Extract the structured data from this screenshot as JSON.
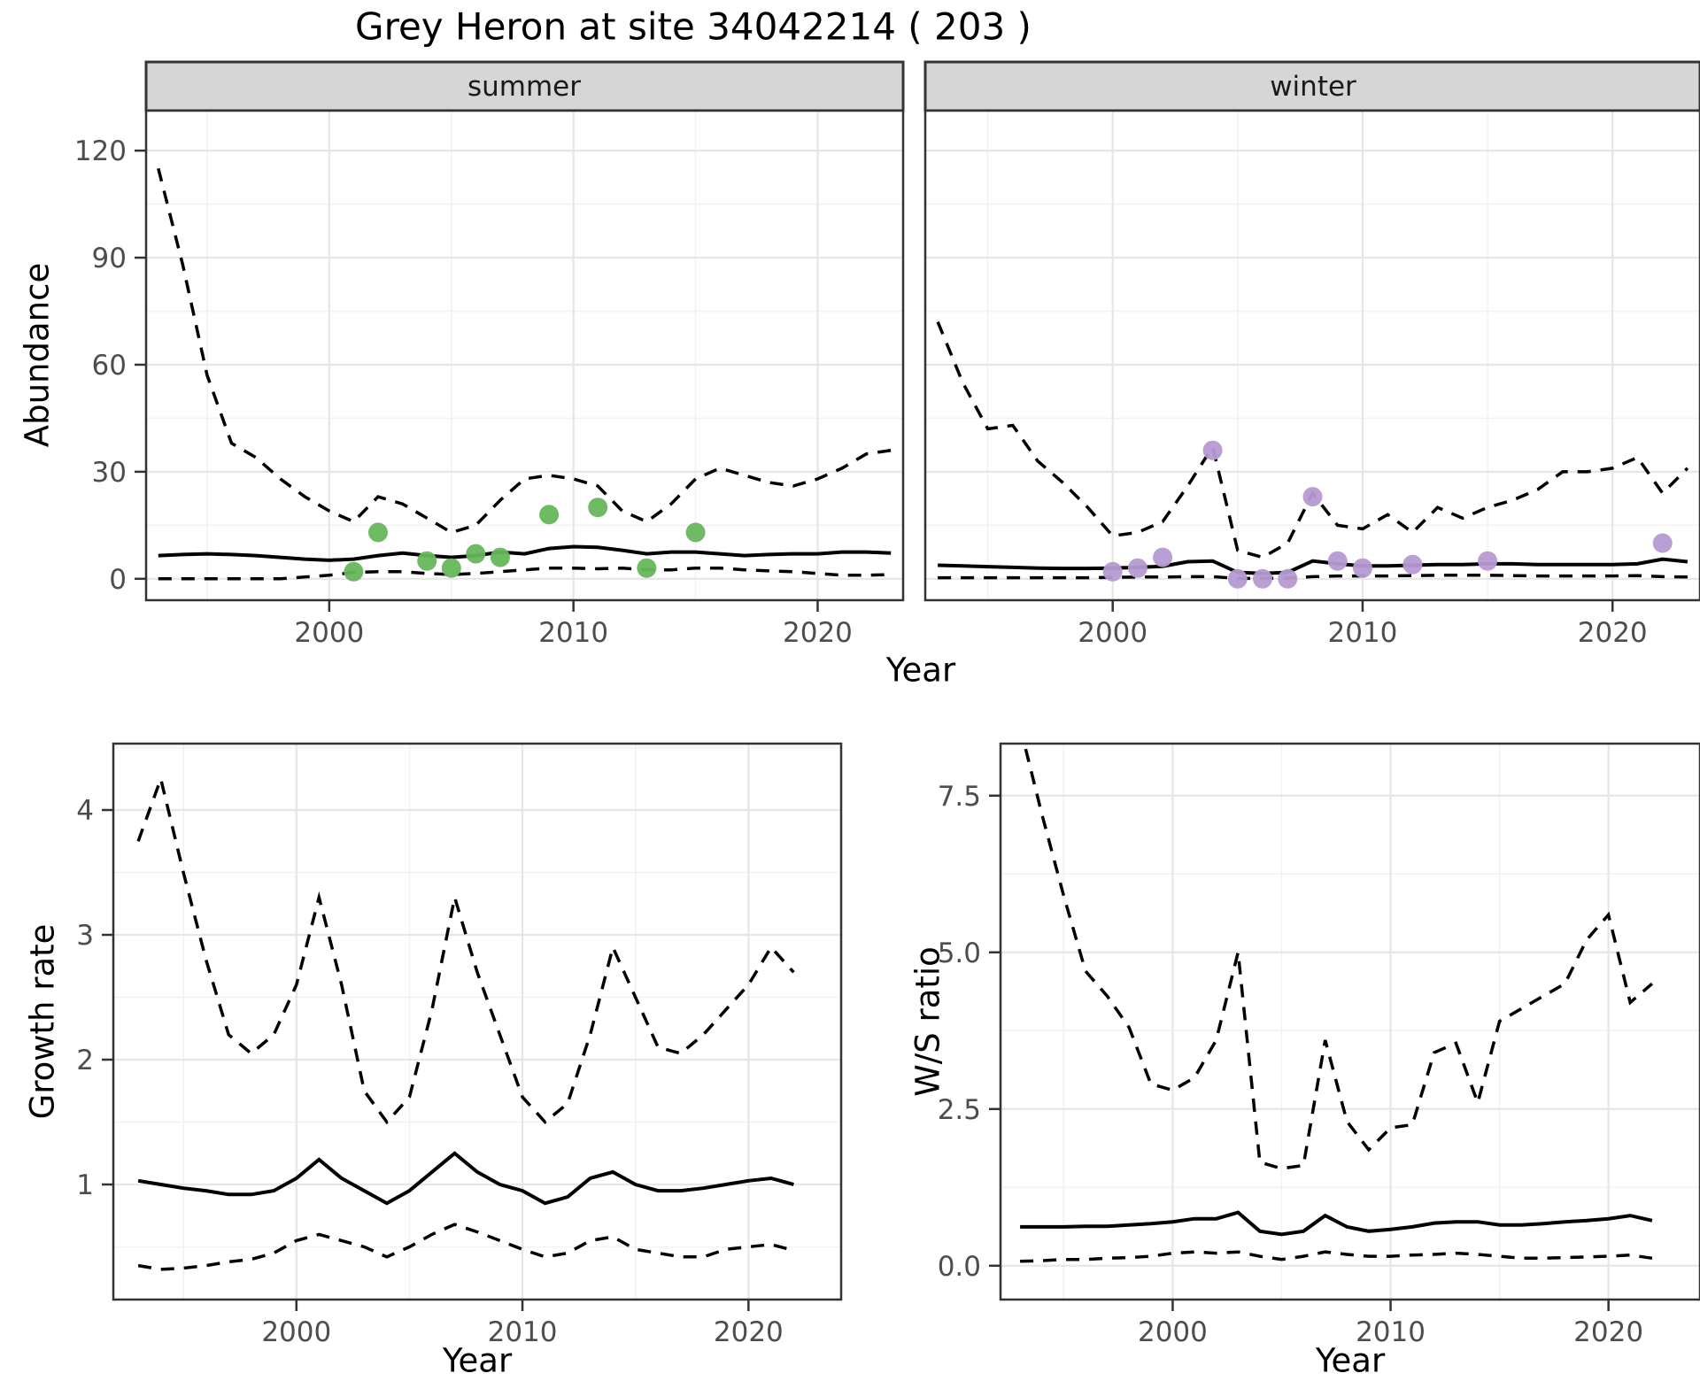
{
  "title": "Grey Heron at site 34042214 ( 203 )",
  "colors": {
    "summer_points": "#66b75c",
    "winter_points": "#b59ad1",
    "ci_line": "#000000",
    "median_line": "#000000",
    "strip_bg": "#d6d6d6",
    "panel_border": "#333333",
    "grid_major": "#e6e6e6",
    "grid_minor": "#f2f2f2",
    "tick_text": "#4d4d4d"
  },
  "chart_data": [
    {
      "id": "abundance_summer",
      "type": "line",
      "facet": "summer",
      "xlabel": "Year",
      "ylabel": "Abundance",
      "xlim": [
        1992.5,
        2023.5
      ],
      "ylim": [
        0,
        120
      ],
      "xticks": [
        2000,
        2010,
        2020
      ],
      "xtick_labels": [
        "2000",
        "2010",
        "2020"
      ],
      "yticks": [
        0,
        30,
        60,
        90,
        120
      ],
      "ytick_labels": [
        "0",
        "30",
        "60",
        "90",
        "120"
      ],
      "grid": true,
      "x": [
        1993,
        1994,
        1995,
        1996,
        1997,
        1998,
        1999,
        2000,
        2001,
        2002,
        2003,
        2004,
        2005,
        2006,
        2007,
        2008,
        2009,
        2010,
        2011,
        2012,
        2013,
        2014,
        2015,
        2016,
        2017,
        2018,
        2019,
        2020,
        2021,
        2022,
        2023
      ],
      "series": [
        {
          "name": "upper_95ci",
          "style": "dashed",
          "values": [
            115,
            88,
            57,
            38,
            34,
            28,
            23,
            19,
            16,
            23,
            21,
            17,
            13,
            15,
            22,
            28,
            29,
            28,
            26,
            19,
            16,
            21,
            28,
            31,
            29,
            27,
            26,
            28,
            31,
            35,
            36
          ]
        },
        {
          "name": "median",
          "style": "solid",
          "values": [
            6.5,
            6.8,
            7,
            6.8,
            6.5,
            6,
            5.5,
            5.2,
            5.5,
            6.5,
            7.2,
            6.5,
            6,
            6.5,
            7.5,
            7,
            8.5,
            9,
            8.8,
            8,
            7,
            7.5,
            7.5,
            7,
            6.5,
            6.8,
            7,
            7,
            7.5,
            7.5,
            7.2
          ]
        },
        {
          "name": "lower_95ci",
          "style": "dashed",
          "values": [
            0,
            0,
            0,
            0,
            0,
            0,
            0.5,
            1,
            1.8,
            2,
            2,
            1.5,
            1.2,
            1.5,
            2,
            2.5,
            3,
            3,
            2.8,
            3,
            2.5,
            2.5,
            3,
            3,
            2.5,
            2.2,
            2,
            1.5,
            1,
            1,
            1.2
          ]
        }
      ],
      "points": {
        "name": "observed_counts_summer",
        "x": [
          2001,
          2002,
          2004,
          2005,
          2006,
          2007,
          2009,
          2011,
          2013,
          2015
        ],
        "y": [
          2,
          13,
          5,
          3,
          7,
          6,
          18,
          20,
          3,
          13
        ]
      }
    },
    {
      "id": "abundance_winter",
      "type": "line",
      "facet": "winter",
      "xlabel": "Year",
      "ylabel": "Abundance",
      "xlim": [
        1992.5,
        2023.5
      ],
      "ylim": [
        0,
        120
      ],
      "xticks": [
        2000,
        2010,
        2020
      ],
      "xtick_labels": [
        "2000",
        "2010",
        "2020"
      ],
      "yticks": [
        0,
        30,
        60,
        90,
        120
      ],
      "ytick_labels": [
        "0",
        "30",
        "60",
        "90",
        "120"
      ],
      "grid": true,
      "x": [
        1993,
        1994,
        1995,
        1996,
        1997,
        1998,
        1999,
        2000,
        2001,
        2002,
        2003,
        2004,
        2005,
        2006,
        2007,
        2008,
        2009,
        2010,
        2011,
        2012,
        2013,
        2014,
        2015,
        2016,
        2017,
        2018,
        2019,
        2020,
        2021,
        2022,
        2023
      ],
      "series": [
        {
          "name": "upper_95ci",
          "style": "dashed",
          "values": [
            72,
            55,
            42,
            43,
            33,
            27,
            20,
            12,
            13,
            16,
            26,
            37,
            8,
            6,
            10,
            24,
            15,
            14,
            18,
            13,
            20,
            17,
            20,
            22,
            25,
            30,
            30,
            31,
            34,
            24,
            31
          ]
        },
        {
          "name": "median",
          "style": "solid",
          "values": [
            3.8,
            3.6,
            3.4,
            3.2,
            3,
            2.9,
            2.9,
            3,
            3.2,
            3.5,
            4.8,
            5,
            1.8,
            1.5,
            1.8,
            5,
            4.2,
            3.6,
            3.6,
            3.8,
            4,
            4,
            4.2,
            4.2,
            4,
            4,
            4,
            4,
            4.2,
            5.5,
            4.8
          ]
        },
        {
          "name": "lower_95ci",
          "style": "dashed",
          "values": [
            0.3,
            0.3,
            0.3,
            0.3,
            0.3,
            0.3,
            0.3,
            0.4,
            0.5,
            0.5,
            0.6,
            0.6,
            0.1,
            0.1,
            0.2,
            0.6,
            0.8,
            0.8,
            0.8,
            0.9,
            1,
            1,
            1,
            0.9,
            0.8,
            0.8,
            0.8,
            0.8,
            0.9,
            0.6,
            0.5
          ]
        }
      ],
      "points": {
        "name": "observed_counts_winter",
        "x": [
          2000,
          2001,
          2002,
          2004,
          2005,
          2006,
          2007,
          2008,
          2009,
          2010,
          2012,
          2015,
          2022
        ],
        "y": [
          2,
          3,
          6,
          36,
          0,
          0,
          0,
          23,
          5,
          3,
          4,
          5,
          10
        ]
      }
    },
    {
      "id": "growth_rate",
      "type": "line",
      "facet": null,
      "xlabel": "Year",
      "ylabel": "Growth rate",
      "xlim": [
        1992.5,
        2023.5
      ],
      "ylim": [
        0.1,
        4.5
      ],
      "xticks": [
        2000,
        2010,
        2020
      ],
      "xtick_labels": [
        "2000",
        "2010",
        "2020"
      ],
      "yticks": [
        1,
        2,
        3,
        4
      ],
      "ytick_labels": [
        "1",
        "2",
        "3",
        "4"
      ],
      "grid": true,
      "x": [
        1993,
        1994,
        1995,
        1996,
        1997,
        1998,
        1999,
        2000,
        2001,
        2002,
        2003,
        2004,
        2005,
        2006,
        2007,
        2008,
        2009,
        2010,
        2011,
        2012,
        2013,
        2014,
        2015,
        2016,
        2017,
        2018,
        2019,
        2020,
        2021,
        2022
      ],
      "series": [
        {
          "name": "upper_95ci",
          "style": "dashed",
          "values": [
            3.75,
            4.25,
            3.5,
            2.8,
            2.2,
            2.05,
            2.2,
            2.6,
            3.3,
            2.6,
            1.75,
            1.5,
            1.7,
            2.4,
            3.3,
            2.7,
            2.2,
            1.7,
            1.5,
            1.65,
            2.2,
            2.9,
            2.5,
            2.1,
            2.05,
            2.2,
            2.4,
            2.6,
            2.9,
            2.7
          ]
        },
        {
          "name": "median",
          "style": "solid",
          "values": [
            1.03,
            1,
            0.97,
            0.95,
            0.92,
            0.92,
            0.95,
            1.05,
            1.2,
            1.05,
            0.95,
            0.85,
            0.95,
            1.1,
            1.25,
            1.1,
            1,
            0.95,
            0.85,
            0.9,
            1.05,
            1.1,
            1,
            0.95,
            0.95,
            0.97,
            1,
            1.03,
            1.05,
            1
          ]
        },
        {
          "name": "lower_95ci",
          "style": "dashed",
          "values": [
            0.35,
            0.32,
            0.33,
            0.35,
            0.38,
            0.4,
            0.45,
            0.55,
            0.6,
            0.55,
            0.5,
            0.42,
            0.5,
            0.6,
            0.68,
            0.62,
            0.55,
            0.48,
            0.42,
            0.45,
            0.55,
            0.58,
            0.48,
            0.45,
            0.42,
            0.42,
            0.48,
            0.5,
            0.52,
            0.47
          ]
        }
      ],
      "points": null
    },
    {
      "id": "ws_ratio",
      "type": "line",
      "facet": null,
      "xlabel": "Year",
      "ylabel": "W/S ratio",
      "xlim": [
        1992.5,
        2023.5
      ],
      "ylim": [
        0,
        7.5
      ],
      "xticks": [
        2000,
        2010,
        2020
      ],
      "xtick_labels": [
        "2000",
        "2010",
        "2020"
      ],
      "yticks": [
        0,
        2.5,
        5,
        7.5
      ],
      "ytick_labels": [
        "0.0",
        "2.5",
        "5.0",
        "7.5"
      ],
      "grid": true,
      "x": [
        1993,
        1994,
        1995,
        1996,
        1997,
        1998,
        1999,
        2000,
        2001,
        2002,
        2003,
        2004,
        2005,
        2006,
        2007,
        2008,
        2009,
        2010,
        2011,
        2012,
        2013,
        2014,
        2015,
        2016,
        2017,
        2018,
        2019,
        2020,
        2021,
        2022
      ],
      "series": [
        {
          "name": "upper_95ci",
          "style": "dashed",
          "values": [
            8.6,
            7.2,
            5.9,
            4.7,
            4.3,
            3.8,
            2.9,
            2.8,
            3,
            3.6,
            5,
            1.65,
            1.55,
            1.6,
            3.6,
            2.3,
            1.85,
            2.2,
            2.25,
            3.4,
            3.55,
            2.6,
            3.9,
            4.1,
            4.3,
            4.5,
            5.2,
            5.6,
            4.2,
            4.5
          ]
        },
        {
          "name": "median",
          "style": "solid",
          "values": [
            0.62,
            0.62,
            0.62,
            0.63,
            0.63,
            0.65,
            0.67,
            0.7,
            0.75,
            0.75,
            0.85,
            0.55,
            0.5,
            0.55,
            0.8,
            0.62,
            0.55,
            0.58,
            0.62,
            0.68,
            0.7,
            0.7,
            0.65,
            0.65,
            0.67,
            0.7,
            0.72,
            0.75,
            0.8,
            0.72
          ]
        },
        {
          "name": "lower_95ci",
          "style": "dashed",
          "values": [
            0.07,
            0.08,
            0.1,
            0.1,
            0.12,
            0.13,
            0.15,
            0.2,
            0.22,
            0.2,
            0.22,
            0.15,
            0.1,
            0.15,
            0.22,
            0.18,
            0.15,
            0.15,
            0.17,
            0.18,
            0.2,
            0.18,
            0.15,
            0.12,
            0.12,
            0.13,
            0.14,
            0.15,
            0.17,
            0.12
          ]
        }
      ],
      "points": null
    }
  ]
}
